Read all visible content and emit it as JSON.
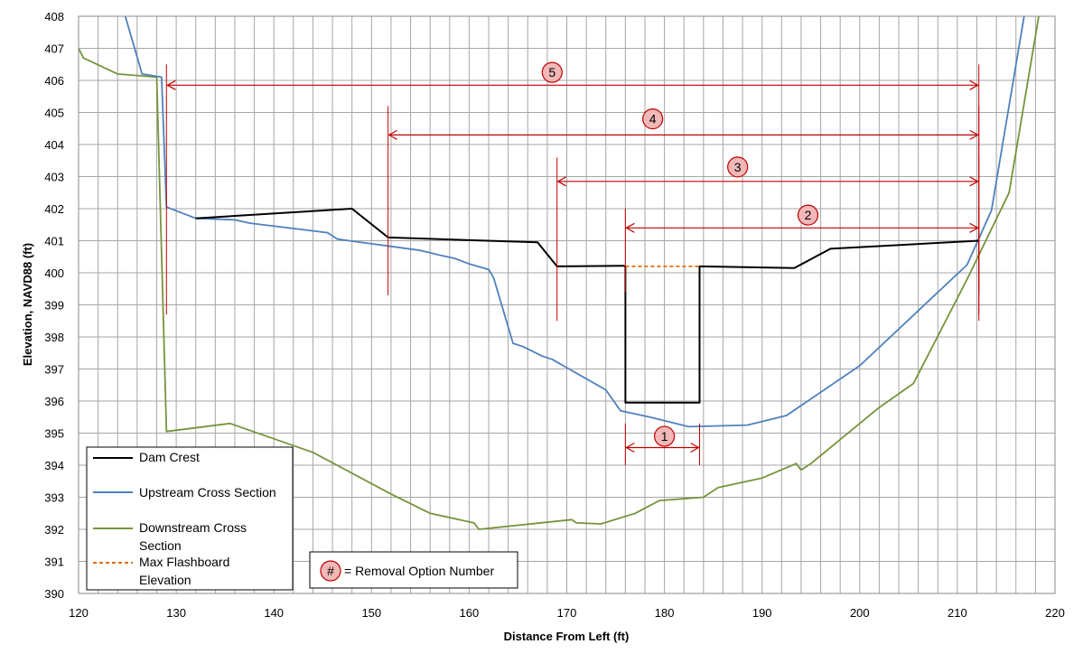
{
  "chart_data": {
    "type": "line",
    "xlabel": "Distance From Left (ft)",
    "ylabel": "Elevation, NAVD88 (ft)",
    "xlim": [
      120,
      220
    ],
    "ylim": [
      390,
      408
    ],
    "x_major_step": 10,
    "x_minor_step": 2,
    "y_step": 1,
    "grid": true,
    "legend_position": "bottom-left",
    "colors": {
      "dam_crest": "#000000",
      "upstream": "#4f81bd",
      "downstream": "#77933c",
      "flashboard": "#e46c0a",
      "option_marker": "#c00000",
      "marker_fill": "#f2b8b8",
      "grid": "#a6a6a6"
    },
    "series": [
      {
        "name": "Dam Crest",
        "key": "dam_crest",
        "points": [
          [
            132,
            401.7
          ],
          [
            148,
            402.0
          ],
          [
            151.7,
            401.1
          ],
          [
            167,
            400.95
          ],
          [
            169,
            400.2
          ],
          [
            175.8,
            400.22
          ],
          [
            176,
            400.2
          ],
          [
            176,
            395.95
          ],
          [
            183.6,
            395.95
          ],
          [
            183.6,
            400.2
          ],
          [
            193.3,
            400.15
          ],
          [
            197,
            400.75
          ],
          [
            212.2,
            401.0
          ]
        ]
      },
      {
        "name": "Upstream Cross Section",
        "key": "upstream",
        "points": [
          [
            124.5,
            408.3
          ],
          [
            126.5,
            406.2
          ],
          [
            128.5,
            406.1
          ],
          [
            129,
            402.05
          ],
          [
            132,
            401.7
          ],
          [
            136,
            401.65
          ],
          [
            137.5,
            401.55
          ],
          [
            145.5,
            401.25
          ],
          [
            146.5,
            401.05
          ],
          [
            155,
            400.7
          ],
          [
            157,
            400.55
          ],
          [
            158.5,
            400.45
          ],
          [
            160,
            400.28
          ],
          [
            162,
            400.1
          ],
          [
            162.5,
            399.85
          ],
          [
            164.5,
            397.8
          ],
          [
            165.5,
            397.7
          ],
          [
            167.5,
            397.4
          ],
          [
            168.5,
            397.3
          ],
          [
            174,
            396.35
          ],
          [
            175.5,
            395.7
          ],
          [
            178.5,
            395.5
          ],
          [
            182.5,
            395.2
          ],
          [
            188.5,
            395.25
          ],
          [
            192.5,
            395.55
          ],
          [
            200,
            397.1
          ],
          [
            211,
            400.25
          ],
          [
            213.5,
            401.95
          ],
          [
            217,
            408.3
          ]
        ]
      },
      {
        "name": "Downstream Cross Section",
        "key": "downstream",
        "points": [
          [
            120,
            407.0
          ],
          [
            120.5,
            406.7
          ],
          [
            124,
            406.2
          ],
          [
            128,
            406.1
          ],
          [
            129,
            395.05
          ],
          [
            135.5,
            395.3
          ],
          [
            144,
            394.4
          ],
          [
            152,
            393.1
          ],
          [
            156,
            392.5
          ],
          [
            160.5,
            392.2
          ],
          [
            161,
            392.0
          ],
          [
            170.5,
            392.3
          ],
          [
            171,
            392.2
          ],
          [
            173.5,
            392.17
          ],
          [
            177,
            392.5
          ],
          [
            179.5,
            392.9
          ],
          [
            184,
            393.0
          ],
          [
            185.5,
            393.3
          ],
          [
            190,
            393.6
          ],
          [
            193.5,
            394.05
          ],
          [
            194,
            393.85
          ],
          [
            195,
            394.05
          ],
          [
            200,
            395.3
          ],
          [
            202,
            395.8
          ],
          [
            205.5,
            396.55
          ],
          [
            211,
            399.8
          ],
          [
            215.3,
            402.5
          ],
          [
            218.5,
            408.3
          ]
        ]
      },
      {
        "name": "Max Flashboard Elevation",
        "key": "flashboard",
        "dashed": true,
        "points": [
          [
            176,
            400.2
          ],
          [
            183.6,
            400.2
          ]
        ]
      }
    ],
    "removal_options": [
      {
        "number": "1",
        "x_start": 176,
        "x_end": 183.6,
        "y": 394.55,
        "label_x": 180,
        "label_y": 394.9,
        "tick_from": 394.0,
        "tick_to": 395.3
      },
      {
        "number": "2",
        "x_start": 176,
        "x_end": 212.2,
        "y": 401.4,
        "label_x": 194.7,
        "label_y": 401.8,
        "tick_from": 399.4,
        "tick_to": 402.0
      },
      {
        "number": "3",
        "x_start": 169,
        "x_end": 212.2,
        "y": 402.85,
        "label_x": 187.5,
        "label_y": 403.3,
        "tick_from": 398.5,
        "tick_to": 403.6
      },
      {
        "number": "4",
        "x_start": 151.7,
        "x_end": 212.2,
        "y": 404.3,
        "label_x": 178.8,
        "label_y": 404.8,
        "tick_from": 399.3,
        "tick_to": 405.2
      },
      {
        "number": "5",
        "x_start": 129,
        "x_end": 212.2,
        "y": 405.85,
        "label_x": 168.5,
        "label_y": 406.25,
        "tick_from": 398.7,
        "tick_to": 406.5
      }
    ],
    "legend_entries": [
      {
        "label": "Dam Crest",
        "key": "dam_crest"
      },
      {
        "label": "Upstream Cross Section",
        "key": "upstream"
      },
      {
        "label": "Downstream Cross Section",
        "key": "downstream"
      },
      {
        "label": "Max Flashboard Elevation",
        "key": "flashboard"
      }
    ],
    "annotation_symbol": "#",
    "annotation_text": "= Removal Option Number"
  }
}
